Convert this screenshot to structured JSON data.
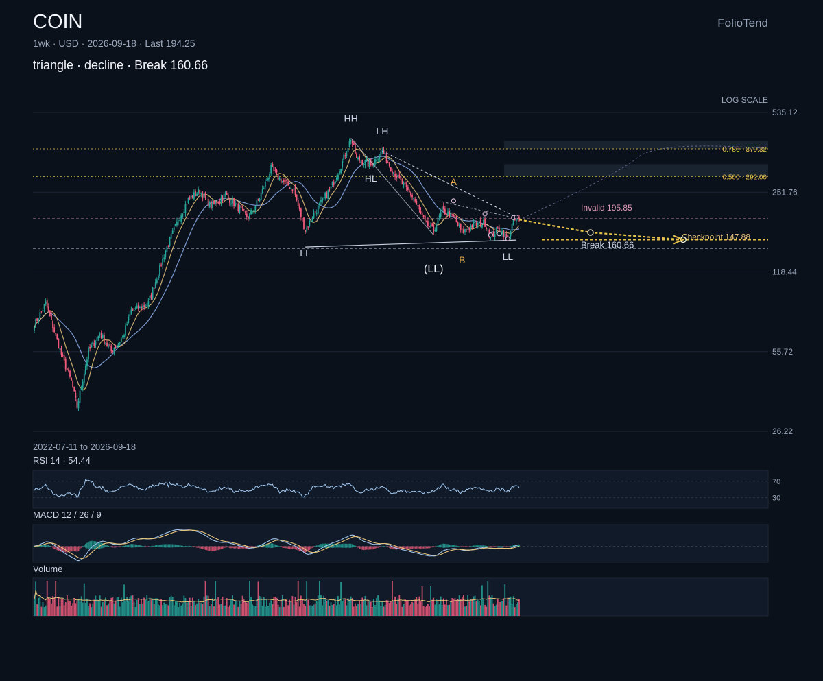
{
  "header": {
    "ticker": "COIN",
    "brand": "FolioTend",
    "subtitle": "1wk · USD · 2026-09-18 · Last 194.25",
    "pattern_line": "triangle · decline · Break 160.66"
  },
  "date_range": "2022-07-11 to 2026-09-18",
  "colors": {
    "background": "#0b111b",
    "up": "#26a69a",
    "down": "#ef5b7b",
    "ma_fast": "#e8c47a",
    "ma_slow": "#8fb3f0",
    "level_gold": "#e8c44a",
    "level_pink": "#e39ab8",
    "grid": "#1c2636"
  },
  "chart_data": {
    "type": "candlestick",
    "scale": "log",
    "scale_label": "LOG SCALE",
    "y_ticks": [
      "535.12",
      "251.76",
      "118.44",
      "55.72",
      "26.22"
    ],
    "y_tick_values": [
      535.12,
      251.76,
      118.44,
      55.72,
      26.22
    ],
    "ylim": [
      26.22,
      535.12
    ],
    "x_start": "2022-07-11",
    "x_end": "2026-09-18",
    "anchors": [
      [
        0,
        72
      ],
      [
        8,
        88
      ],
      [
        20,
        52
      ],
      [
        26,
        42
      ],
      [
        30,
        33
      ],
      [
        38,
        56
      ],
      [
        46,
        66
      ],
      [
        54,
        56
      ],
      [
        62,
        64
      ],
      [
        68,
        82
      ],
      [
        74,
        84
      ],
      [
        80,
        88
      ],
      [
        92,
        145
      ],
      [
        102,
        200
      ],
      [
        108,
        235
      ],
      [
        116,
        255
      ],
      [
        124,
        220
      ],
      [
        134,
        245
      ],
      [
        144,
        215
      ],
      [
        150,
        198
      ],
      [
        158,
        238
      ],
      [
        166,
        315
      ],
      [
        172,
        285
      ],
      [
        182,
        258
      ],
      [
        186,
        210
      ],
      [
        190,
        175
      ],
      [
        196,
        205
      ],
      [
        208,
        262
      ],
      [
        216,
        335
      ],
      [
        222,
        420
      ],
      [
        226,
        345
      ],
      [
        236,
        325
      ],
      [
        244,
        372
      ],
      [
        250,
        318
      ],
      [
        258,
        272
      ],
      [
        266,
        238
      ],
      [
        274,
        188
      ],
      [
        280,
        175
      ],
      [
        286,
        212
      ],
      [
        294,
        198
      ],
      [
        300,
        172
      ],
      [
        308,
        185
      ],
      [
        316,
        188
      ],
      [
        320,
        168
      ],
      [
        326,
        178
      ],
      [
        332,
        162
      ],
      [
        336,
        192
      ],
      [
        340,
        194.25
      ]
    ],
    "levels": [
      {
        "label": "0.786 · 379.32",
        "value": 379.32,
        "style": "fib"
      },
      {
        "label": "0.500 · 292.00",
        "value": 292.0,
        "style": "fib"
      },
      {
        "label": "Invalid 195.85",
        "value": 195.85,
        "style": "invalid"
      },
      {
        "label": "Checkpoint 147.88",
        "value": 147.88,
        "style": "checkpoint"
      },
      {
        "label": "Break 160.66",
        "value": 160.66,
        "style": "break"
      }
    ],
    "pivots": [
      {
        "label": "HH",
        "i": 222,
        "price": 420,
        "pos": "above",
        "color": "#c9d3e3"
      },
      {
        "label": "LH",
        "i": 244,
        "price": 372,
        "pos": "above",
        "color": "#c9d3e3"
      },
      {
        "label": "HL",
        "i": 236,
        "price": 325,
        "pos": "below",
        "color": "#c9d3e3"
      },
      {
        "label": "LL",
        "i": 190,
        "price": 160,
        "pos": "below",
        "color": "#c9d3e3"
      },
      {
        "label": "(LL)",
        "i": 280,
        "price": 138,
        "pos": "below",
        "color": "#f2f5fa"
      },
      {
        "label": "A",
        "i": 294,
        "price": 230,
        "pos": "above",
        "color": "#e8a94a"
      },
      {
        "label": "B",
        "i": 300,
        "price": 150,
        "pos": "below",
        "color": "#e8a94a"
      },
      {
        "label": "LL",
        "i": 332,
        "price": 155,
        "pos": "below",
        "color": "#c9d3e3"
      }
    ],
    "projection": [
      {
        "i": 340,
        "price": 194.25
      },
      {
        "i": 390,
        "price": 172
      },
      {
        "i": 455,
        "price": 160.66
      }
    ],
    "indicators": {
      "rsi": {
        "label": "RSI 14 · 54.44",
        "value": 54.44,
        "levels": [
          "70",
          "30"
        ]
      },
      "macd": {
        "label": "MACD 12 / 26 / 9"
      },
      "volume": {
        "label": "Volume"
      }
    }
  }
}
